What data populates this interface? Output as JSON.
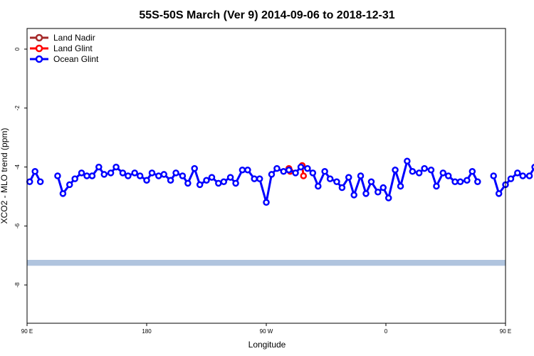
{
  "chart_data": {
    "type": "line",
    "title": "55S-50S March (Ver 9)   2014-09-06 to 2018-12-31",
    "xlabel": "Longitude",
    "ylabel": "XCO2 - MLO trend (ppm)",
    "xlim": [
      90,
      450
    ],
    "ylim": [
      -9.3,
      0.7
    ],
    "x_ticks": [
      {
        "value": 90,
        "label": "90 E"
      },
      {
        "value": 180,
        "label": "180"
      },
      {
        "value": 270,
        "label": "90 W"
      },
      {
        "value": 360,
        "label": "0"
      },
      {
        "value": 450,
        "label": "90 E"
      },
      {
        "value": 540,
        "label": "180"
      }
    ],
    "y_ticks": [
      {
        "value": 0,
        "label": "0"
      },
      {
        "value": -2,
        "label": "-2"
      },
      {
        "value": -4,
        "label": "-4"
      },
      {
        "value": -6,
        "label": "-6"
      },
      {
        "value": -8,
        "label": "-8"
      }
    ],
    "legend_position": "top-left",
    "series": [
      {
        "name": "Land Nadir",
        "color": "#a52a2a",
        "points": []
      },
      {
        "name": "Land Glint",
        "color": "#ff0000",
        "points": [
          {
            "x": 287,
            "y": -4.05
          },
          {
            "x": 288,
            "y": -4.15
          },
          {
            "x": 297,
            "y": -3.95
          },
          {
            "x": 298,
            "y": -4.3
          }
        ]
      },
      {
        "name": "Ocean Glint",
        "color": "#0000ff",
        "points": [
          {
            "x": 92,
            "y": -4.5
          },
          {
            "x": 96,
            "y": -4.15
          },
          {
            "x": 100,
            "y": -4.5
          },
          {
            "x": 113,
            "y": -4.3
          },
          {
            "x": 117,
            "y": -4.9
          },
          {
            "x": 122,
            "y": -4.6
          },
          {
            "x": 126,
            "y": -4.4
          },
          {
            "x": 131,
            "y": -4.2
          },
          {
            "x": 135,
            "y": -4.3
          },
          {
            "x": 139,
            "y": -4.3
          },
          {
            "x": 144,
            "y": -4.0
          },
          {
            "x": 148,
            "y": -4.25
          },
          {
            "x": 153,
            "y": -4.2
          },
          {
            "x": 157,
            "y": -4.0
          },
          {
            "x": 162,
            "y": -4.2
          },
          {
            "x": 166,
            "y": -4.3
          },
          {
            "x": 171,
            "y": -4.2
          },
          {
            "x": 175,
            "y": -4.3
          },
          {
            "x": 180,
            "y": -4.45
          },
          {
            "x": 184,
            "y": -4.2
          },
          {
            "x": 189,
            "y": -4.3
          },
          {
            "x": 193,
            "y": -4.25
          },
          {
            "x": 198,
            "y": -4.45
          },
          {
            "x": 202,
            "y": -4.2
          },
          {
            "x": 207,
            "y": -4.3
          },
          {
            "x": 211,
            "y": -4.55
          },
          {
            "x": 216,
            "y": -4.05
          },
          {
            "x": 220,
            "y": -4.6
          },
          {
            "x": 225,
            "y": -4.45
          },
          {
            "x": 229,
            "y": -4.35
          },
          {
            "x": 234,
            "y": -4.55
          },
          {
            "x": 238,
            "y": -4.5
          },
          {
            "x": 243,
            "y": -4.35
          },
          {
            "x": 247,
            "y": -4.55
          },
          {
            "x": 252,
            "y": -4.1
          },
          {
            "x": 256,
            "y": -4.1
          },
          {
            "x": 261,
            "y": -4.4
          },
          {
            "x": 265,
            "y": -4.4
          },
          {
            "x": 270,
            "y": -5.2
          },
          {
            "x": 274,
            "y": -4.25
          },
          {
            "x": 278,
            "y": -4.05
          },
          {
            "x": 283,
            "y": -4.15
          },
          {
            "x": 287,
            "y": -4.1
          },
          {
            "x": 292,
            "y": -4.2
          },
          {
            "x": 296,
            "y": -4.0
          },
          {
            "x": 301,
            "y": -4.05
          },
          {
            "x": 305,
            "y": -4.2
          },
          {
            "x": 309,
            "y": -4.65
          },
          {
            "x": 314,
            "y": -4.15
          },
          {
            "x": 318,
            "y": -4.4
          },
          {
            "x": 323,
            "y": -4.5
          },
          {
            "x": 327,
            "y": -4.7
          },
          {
            "x": 332,
            "y": -4.35
          },
          {
            "x": 336,
            "y": -4.95
          },
          {
            "x": 341,
            "y": -4.3
          },
          {
            "x": 345,
            "y": -4.9
          },
          {
            "x": 349,
            "y": -4.5
          },
          {
            "x": 354,
            "y": -4.85
          },
          {
            "x": 358,
            "y": -4.7
          },
          {
            "x": 362,
            "y": -5.05
          },
          {
            "x": 367,
            "y": -4.1
          },
          {
            "x": 371,
            "y": -4.65
          },
          {
            "x": 376,
            "y": -3.8
          },
          {
            "x": 380,
            "y": -4.15
          },
          {
            "x": 385,
            "y": -4.2
          },
          {
            "x": 389,
            "y": -4.05
          },
          {
            "x": 394,
            "y": -4.1
          },
          {
            "x": 398,
            "y": -4.65
          },
          {
            "x": 403,
            "y": -4.2
          },
          {
            "x": 407,
            "y": -4.3
          },
          {
            "x": 412,
            "y": -4.5
          },
          {
            "x": 416,
            "y": -4.5
          },
          {
            "x": 421,
            "y": -4.45
          },
          {
            "x": 425,
            "y": -4.15
          },
          {
            "x": 429,
            "y": -4.5
          },
          {
            "x": 441,
            "y": -4.3
          },
          {
            "x": 445,
            "y": -4.9
          },
          {
            "x": 450,
            "y": -4.6
          },
          {
            "x": 454,
            "y": -4.4
          },
          {
            "x": 459,
            "y": -4.2
          },
          {
            "x": 463,
            "y": -4.3
          },
          {
            "x": 468,
            "y": -4.3
          },
          {
            "x": 472,
            "y": -4.0
          },
          {
            "x": 477,
            "y": -4.25
          },
          {
            "x": 481,
            "y": -4.2
          },
          {
            "x": 486,
            "y": -4.0
          },
          {
            "x": 490,
            "y": -4.2
          },
          {
            "x": 495,
            "y": -4.3
          },
          {
            "x": 499,
            "y": -4.2
          }
        ]
      }
    ],
    "band": {
      "y_top": -7.15,
      "y_bottom": -7.35,
      "color": "#b0c4de"
    }
  }
}
